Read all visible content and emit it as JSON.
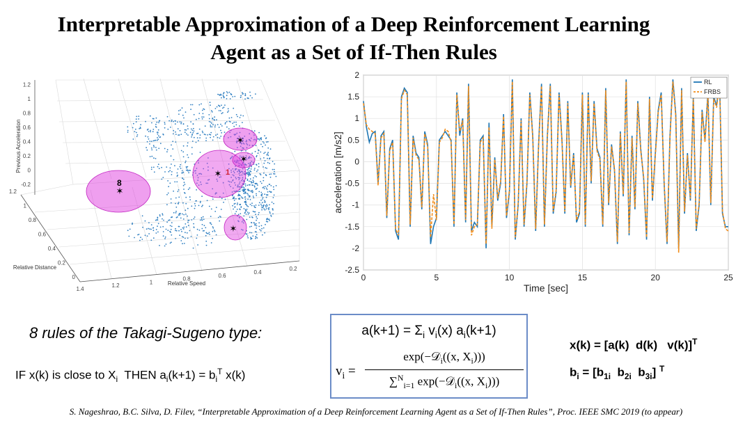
{
  "title": {
    "line1": "Interpretable Approximation of a Deep Reinforcement Learning",
    "line2": "Agent as a Set of If-Then Rules"
  },
  "scatter3d": {
    "x_label": "Relative Speed",
    "y_label": "Relative Distance",
    "z_label": "Previous Acceleration",
    "x_ticks": [
      "1.4",
      "1.2",
      "1",
      "0.8",
      "0.6",
      "0.4",
      "0.2"
    ],
    "y_ticks": [
      "0",
      "0.2",
      "0.4",
      "0.6",
      "0.8",
      "1",
      "1.2"
    ],
    "z_ticks": [
      "-0.2",
      "0",
      "0.2",
      "0.4",
      "0.6",
      "0.8",
      "1",
      "1.2"
    ],
    "cluster_labels": [
      "8",
      "1"
    ],
    "point_color": "#2f7fc1",
    "ellipse_color": "#e040e0"
  },
  "chart_data": {
    "type": "line",
    "title": "",
    "xlabel": "Time [sec]",
    "ylabel": "acceleration [m/s2]",
    "xlim": [
      0,
      25
    ],
    "ylim": [
      -2.5,
      2
    ],
    "x_ticks": [
      0,
      5,
      10,
      15,
      20,
      25
    ],
    "y_ticks": [
      -2.5,
      -2,
      -1.5,
      -1,
      -0.5,
      0,
      0.5,
      1,
      1.5,
      2
    ],
    "legend_position": "top-right",
    "x": [
      0,
      0.2,
      0.4,
      0.6,
      0.8,
      1.0,
      1.2,
      1.4,
      1.6,
      1.8,
      2.0,
      2.2,
      2.4,
      2.6,
      2.8,
      3.0,
      3.2,
      3.4,
      3.6,
      3.8,
      4.0,
      4.2,
      4.4,
      4.6,
      4.8,
      5.0,
      5.2,
      5.4,
      5.6,
      5.8,
      6.0,
      6.2,
      6.4,
      6.6,
      6.8,
      7.0,
      7.2,
      7.4,
      7.6,
      7.8,
      8.0,
      8.2,
      8.4,
      8.6,
      8.8,
      9.0,
      9.2,
      9.4,
      9.6,
      9.8,
      10.0,
      10.2,
      10.4,
      10.6,
      10.8,
      11.0,
      11.2,
      11.4,
      11.6,
      11.8,
      12.0,
      12.2,
      12.4,
      12.6,
      12.8,
      13.0,
      13.2,
      13.4,
      13.6,
      13.8,
      14.0,
      14.2,
      14.4,
      14.6,
      14.8,
      15.0,
      15.2,
      15.4,
      15.6,
      15.8,
      16.0,
      16.2,
      16.4,
      16.6,
      16.8,
      17.0,
      17.2,
      17.4,
      17.6,
      17.8,
      18.0,
      18.2,
      18.4,
      18.6,
      18.8,
      19.0,
      19.2,
      19.4,
      19.6,
      19.8,
      20.0,
      20.2,
      20.4,
      20.6,
      20.8,
      21.0,
      21.2,
      21.4,
      21.6,
      21.8,
      22.0,
      22.2,
      22.4,
      22.6,
      22.8,
      23.0,
      23.2,
      23.4,
      23.6,
      23.8,
      24.0,
      24.2,
      24.4,
      24.6,
      24.8,
      25.0
    ],
    "series": [
      {
        "name": "RL",
        "color": "#1f77b4",
        "values": [
          1.4,
          0.8,
          0.45,
          0.65,
          0.7,
          -0.5,
          0.6,
          0.7,
          -1.3,
          0.3,
          0.5,
          -1.6,
          -1.8,
          1.5,
          1.7,
          1.6,
          -1.5,
          0.6,
          0.2,
          0.1,
          -1.1,
          0.7,
          0.4,
          -1.9,
          -1.5,
          -1.3,
          0.5,
          0.6,
          0.7,
          0.6,
          0.5,
          -1.5,
          1.6,
          0.6,
          1.0,
          -1.4,
          1.8,
          -1.6,
          -1.4,
          -1.5,
          0.5,
          0.6,
          -2.0,
          0.9,
          -1.5,
          0.1,
          -0.9,
          -0.5,
          1.1,
          -1.3,
          -0.7,
          1.9,
          -1.8,
          -1.0,
          1.0,
          -1.5,
          -0.5,
          1.6,
          0.6,
          -1.6,
          0.4,
          1.8,
          -1.5,
          0.6,
          1.8,
          -1.2,
          -0.7,
          1.6,
          0.5,
          -1.2,
          1.4,
          -0.6,
          0.2,
          -1.4,
          -1.2,
          1.6,
          -1.5,
          1.6,
          -0.5,
          1.4,
          0.3,
          0.1,
          -1.5,
          1.7,
          -1.0,
          0.4,
          -0.2,
          -1.9,
          0.7,
          -0.8,
          1.9,
          -1.7,
          0.6,
          -1.1,
          1.4,
          0.3,
          -0.4,
          -1.8,
          1.5,
          -0.9,
          0.2,
          1.2,
          1.6,
          -0.5,
          -1.9,
          0.6,
          1.9,
          1.1,
          -2.0,
          1.7,
          -1.2,
          0.2,
          -0.9,
          1.5,
          -1.6,
          -1.0,
          1.2,
          0.5,
          1.6,
          -1.0,
          1.5,
          1.3,
          1.9,
          -1.2,
          -1.5,
          -1.5
        ]
      },
      {
        "name": "FRBS",
        "color": "#f28e1c",
        "values": [
          1.35,
          0.85,
          0.75,
          0.7,
          0.65,
          -0.55,
          0.55,
          0.65,
          -1.25,
          0.25,
          0.45,
          -1.55,
          -1.7,
          1.45,
          1.65,
          1.55,
          -1.45,
          0.55,
          0.15,
          0.05,
          -1.05,
          0.65,
          0.35,
          -1.75,
          -0.75,
          -1.35,
          0.45,
          0.55,
          0.75,
          0.7,
          0.45,
          -1.45,
          1.55,
          0.7,
          0.95,
          -1.35,
          1.75,
          -1.7,
          -1.5,
          -1.45,
          0.45,
          0.55,
          -1.9,
          0.8,
          -1.55,
          0.05,
          -0.85,
          -0.45,
          1.05,
          -1.25,
          -0.65,
          1.85,
          -1.75,
          -0.95,
          0.95,
          -1.45,
          -0.45,
          1.55,
          0.55,
          -1.55,
          0.35,
          1.75,
          -1.45,
          0.55,
          1.75,
          -1.15,
          -0.65,
          1.55,
          0.45,
          -1.15,
          1.35,
          -0.55,
          0.15,
          -1.35,
          -1.15,
          1.55,
          -1.45,
          1.55,
          -0.45,
          1.35,
          0.25,
          0.05,
          -1.45,
          1.65,
          -0.95,
          0.35,
          -0.15,
          -1.85,
          0.65,
          -0.75,
          1.85,
          -1.65,
          0.55,
          -1.05,
          1.35,
          0.25,
          -0.35,
          -1.75,
          1.45,
          -0.85,
          0.15,
          1.15,
          1.55,
          -0.45,
          -1.85,
          0.55,
          1.85,
          1.05,
          -2.1,
          1.65,
          -1.15,
          0.15,
          -0.85,
          1.45,
          -1.55,
          -0.95,
          1.15,
          0.45,
          1.55,
          -0.95,
          1.45,
          1.25,
          1.85,
          -1.15,
          -1.55,
          -1.6
        ]
      }
    ]
  },
  "rules": {
    "heading": "8 rules of the Takagi-Sugeno type:",
    "if_text": "IF x(k) is close to X",
    "if_sub": "i",
    "then_text": "  THEN a",
    "then_sub": "i",
    "then_rest": "(k+1) = b",
    "then_sub2": "i",
    "then_sup": "T",
    "then_end": " x(k)"
  },
  "formula": {
    "line1_lhs": "a(k+1) = Σ",
    "line1_sub1": "i",
    "line1_mid": " v",
    "line1_sub2": "i",
    "line1_mid2": "(x)  a",
    "line1_sub3": "i",
    "line1_end": "(k+1)",
    "vi_label": "v",
    "vi_sub": "i",
    "vi_eq": " =",
    "numerator": "exp(−𝒟",
    "numerator_sub": "i",
    "numerator_end": "((x, X",
    "numerator_sub2": "i",
    "numerator_close": ")))",
    "denominator_sum": "∑",
    "denominator_sub": "i=1",
    "denominator_sup": "N",
    "denominator_rest": " exp(−𝒟",
    "denominator_sub2": "i",
    "denominator_end": "((x, X",
    "denominator_sub3": "i",
    "denominator_close": ")))"
  },
  "definitions": {
    "xk_text": "x(k) = [a(k)  d(k)   v(k)]",
    "xk_sup": "T",
    "bi_text": "b",
    "bi_sub": "i",
    "bi_mid": " = [b",
    "bi_sub1": "1i",
    "bi_mid2": "  b",
    "bi_sub2": "2i",
    "bi_mid3": "  b",
    "bi_sub3": "3i",
    "bi_end": "] ",
    "bi_sup": "T"
  },
  "citation": "S. Nageshrao, B.C. Silva, D. Filev, “Interpretable Approximation of a Deep Reinforcement Learning Agent as a Set of If-Then Rules”, Proc. IEEE SMC 2019 (to appear)"
}
